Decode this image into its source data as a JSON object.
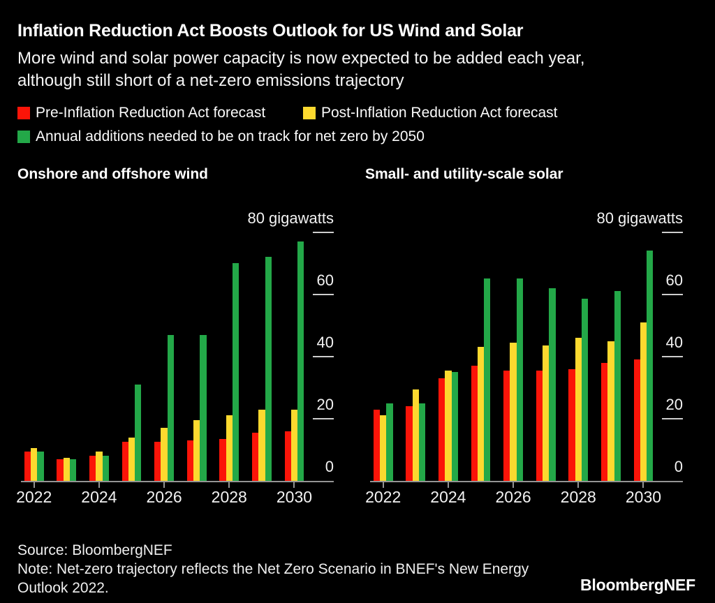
{
  "header": {
    "title": "Inflation Reduction Act Boosts Outlook for US Wind and Solar",
    "subtitle_lines": [
      "More wind and solar power capacity is now expected to be added each year,",
      "although still short of a net-zero emissions trajectory"
    ]
  },
  "legend": {
    "items": [
      {
        "key": "pre",
        "label": "Pre-Inflation Reduction Act forecast",
        "color": "#fb1408"
      },
      {
        "key": "post",
        "label": "Post-Inflation Reduction Act forecast",
        "color": "#fcd92f"
      },
      {
        "key": "netzero",
        "label": "Annual additions needed to be on track for net zero by 2050",
        "color": "#23a848"
      }
    ]
  },
  "chart_data": [
    {
      "type": "bar",
      "title": "Onshore and offshore wind",
      "x": [
        2022,
        2023,
        2024,
        2025,
        2026,
        2027,
        2028,
        2029,
        2030
      ],
      "x_tick_labels": [
        "2022",
        "2024",
        "2026",
        "2028",
        "2030"
      ],
      "ylabel": "gigawatts",
      "ylim": [
        0,
        80
      ],
      "yticks": [
        {
          "value": 0,
          "label": "0"
        },
        {
          "value": 20,
          "label": "20"
        },
        {
          "value": 40,
          "label": "40"
        },
        {
          "value": 60,
          "label": "60"
        },
        {
          "value": 80,
          "label": "80 gigawatts"
        }
      ],
      "grid": "right-side tick dashes only",
      "legend_position": "top of figure, shared",
      "series": [
        {
          "key": "pre",
          "name": "Pre-Inflation Reduction Act forecast",
          "color": "#fb1408",
          "values": [
            9.5,
            7,
            8,
            12.5,
            12.5,
            13,
            13.5,
            15.5,
            16
          ]
        },
        {
          "key": "post",
          "name": "Post-Inflation Reduction Act forecast",
          "color": "#fcd92f",
          "values": [
            10.5,
            7.5,
            9.5,
            14,
            17,
            19.5,
            21,
            23,
            23
          ]
        },
        {
          "key": "netzero",
          "name": "Annual additions needed to be on track for net zero by 2050",
          "color": "#23a848",
          "values": [
            9.5,
            7,
            8,
            31,
            47,
            47,
            70,
            72,
            77
          ]
        }
      ]
    },
    {
      "type": "bar",
      "title": "Small- and utility-scale solar",
      "x": [
        2022,
        2023,
        2024,
        2025,
        2026,
        2027,
        2028,
        2029,
        2030
      ],
      "x_tick_labels": [
        "2022",
        "2024",
        "2026",
        "2028",
        "2030"
      ],
      "ylabel": "gigawatts",
      "ylim": [
        0,
        80
      ],
      "yticks": [
        {
          "value": 0,
          "label": "0"
        },
        {
          "value": 20,
          "label": "20"
        },
        {
          "value": 40,
          "label": "40"
        },
        {
          "value": 60,
          "label": "60"
        },
        {
          "value": 80,
          "label": "80 gigawatts"
        }
      ],
      "grid": "right-side tick dashes only",
      "legend_position": "top of figure, shared",
      "series": [
        {
          "key": "pre",
          "name": "Pre-Inflation Reduction Act forecast",
          "color": "#fb1408",
          "values": [
            23,
            24,
            33,
            37,
            35.5,
            35.5,
            36,
            38,
            39
          ]
        },
        {
          "key": "post",
          "name": "Post-Inflation Reduction Act forecast",
          "color": "#fcd92f",
          "values": [
            21,
            29.5,
            35.5,
            43,
            44.5,
            43.5,
            46,
            45,
            51
          ]
        },
        {
          "key": "netzero",
          "name": "Annual additions needed to be on track for net zero by 2050",
          "color": "#23a848",
          "values": [
            25,
            25,
            35,
            65,
            65,
            62,
            58.5,
            61,
            74
          ]
        }
      ]
    }
  ],
  "footer": {
    "source": "Source: BloombergNEF",
    "note_lines": [
      "Note: Net-zero trajectory reflects the Net Zero Scenario in BNEF's New Energy",
      "Outlook 2022."
    ],
    "logo": "BloombergNEF"
  }
}
